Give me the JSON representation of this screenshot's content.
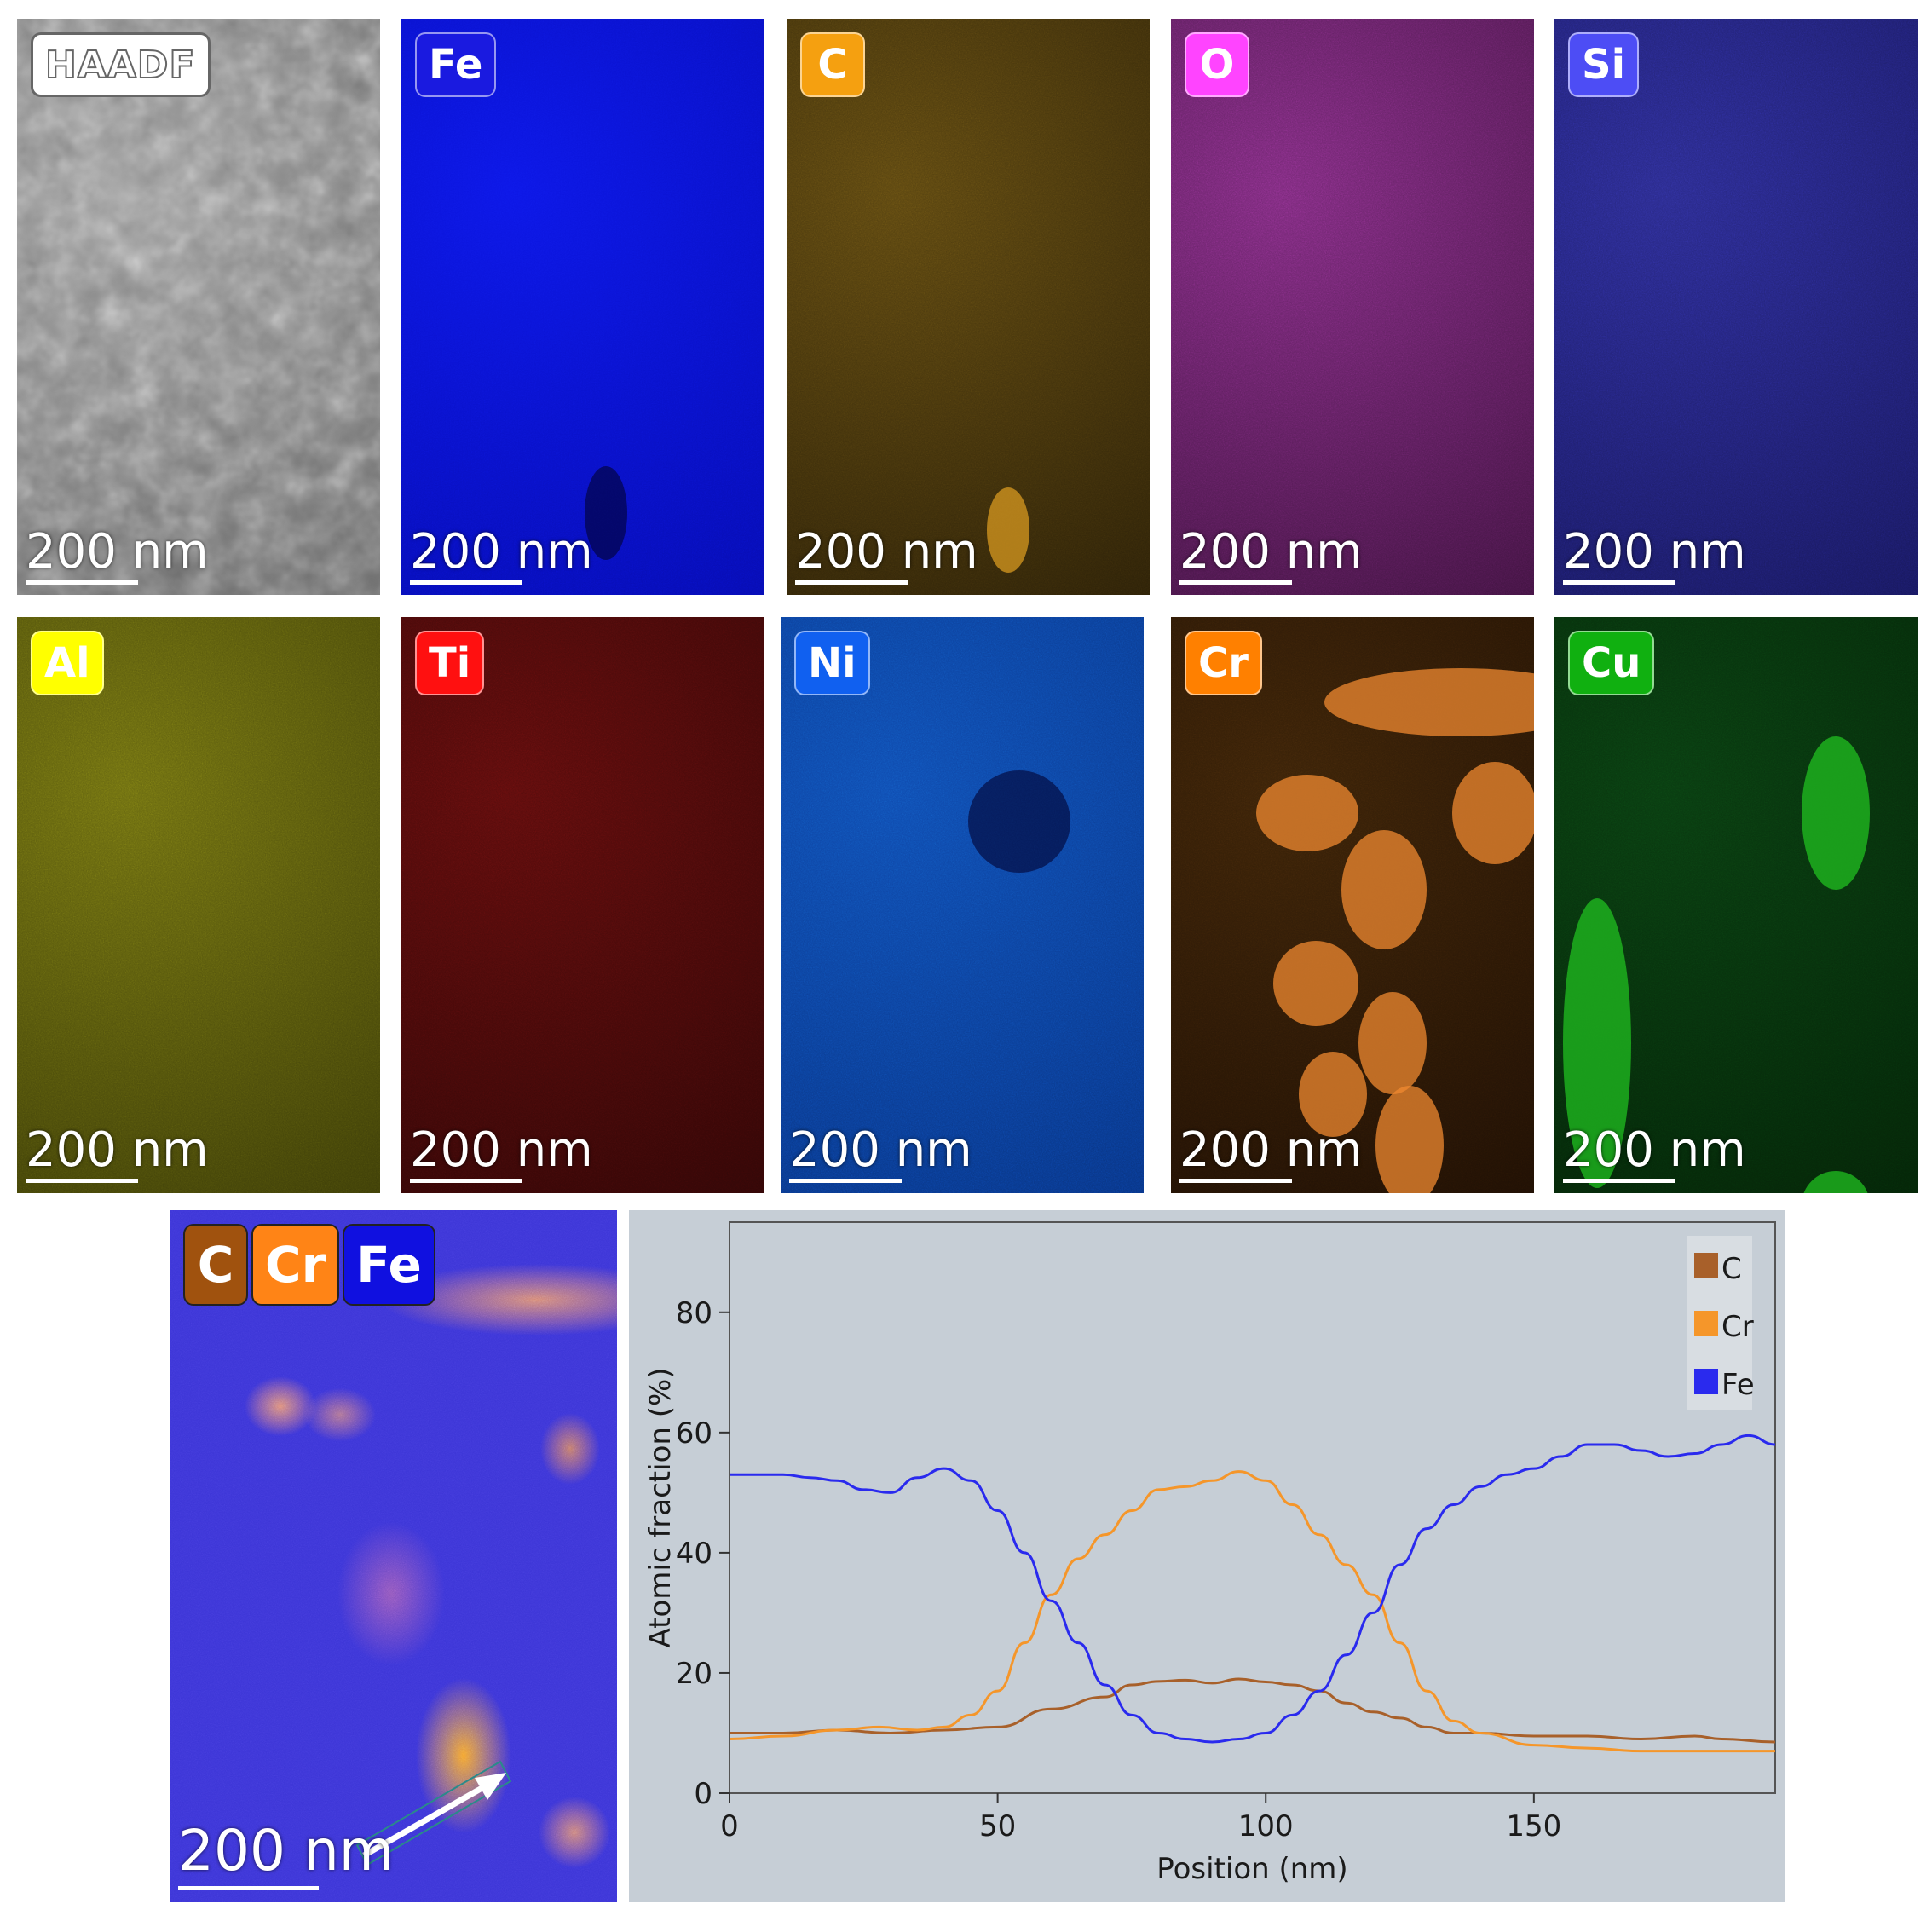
{
  "scale_bar_label": "200 nm",
  "maps": [
    {
      "label": "HAADF",
      "bg_color": "#9a9a9a",
      "badge_color": "#ffffff",
      "texture": "gray"
    },
    {
      "label": "Fe",
      "bg_color": "#0c16e6",
      "badge_color": "#1a1ae0",
      "texture": "blue"
    },
    {
      "label": "C",
      "bg_color": "#5a4510",
      "badge_color": "#f5a010",
      "texture": "amber"
    },
    {
      "label": "O",
      "bg_color": "#7a2a7a",
      "badge_color": "#ff44ff",
      "texture": "magenta"
    },
    {
      "label": "Si",
      "bg_color": "#2a2a8a",
      "badge_color": "#4d4df5",
      "texture": "violet"
    },
    {
      "label": "Al",
      "bg_color": "#6a6a10",
      "badge_color": "#ffff00",
      "texture": "yellow"
    },
    {
      "label": "Ti",
      "bg_color": "#5a0c0c",
      "badge_color": "#ff1010",
      "texture": "red"
    },
    {
      "label": "Ni",
      "bg_color": "#0f4bb0",
      "badge_color": "#1060f0",
      "texture": "cobalt"
    },
    {
      "label": "Cr",
      "bg_color": "#3a2208",
      "badge_color": "#ff8000",
      "texture": "orange"
    },
    {
      "label": "Cu",
      "bg_color": "#093a10",
      "badge_color": "#10b010",
      "texture": "green"
    }
  ],
  "overlay": {
    "badges": [
      {
        "label": "C",
        "color": "#a0520e"
      },
      {
        "label": "Cr",
        "color": "#ff8416"
      },
      {
        "label": "Fe",
        "color": "#1010e0"
      }
    ],
    "scale_bar_label": "200 nm"
  },
  "chart_data": {
    "type": "line",
    "xlabel": "Position (nm)",
    "ylabel": "Atomic fraction (%)",
    "xlim": [
      0,
      195
    ],
    "ylim": [
      0,
      95
    ],
    "xticks": [
      0,
      50,
      100,
      150
    ],
    "yticks": [
      0,
      20,
      40,
      60,
      80
    ],
    "legend_position": "top-right",
    "series": [
      {
        "name": "C",
        "color": "#a8602a",
        "x": [
          0,
          10,
          20,
          30,
          40,
          50,
          60,
          70,
          75,
          80,
          85,
          90,
          95,
          100,
          105,
          110,
          115,
          120,
          125,
          130,
          135,
          140,
          150,
          160,
          170,
          180,
          185,
          195
        ],
        "y": [
          10,
          10,
          10.5,
          10,
          10.5,
          11,
          14,
          16,
          18,
          18.6,
          18.8,
          18.3,
          19,
          18.5,
          18,
          17,
          15,
          13.5,
          12.5,
          11,
          10,
          10,
          9.5,
          9.5,
          9,
          9.5,
          9,
          8.5
        ]
      },
      {
        "name": "Cr",
        "color": "#f5962a",
        "x": [
          0,
          10,
          20,
          28,
          35,
          40,
          45,
          50,
          55,
          60,
          65,
          70,
          75,
          80,
          85,
          90,
          95,
          100,
          105,
          110,
          115,
          120,
          125,
          130,
          135,
          140,
          150,
          160,
          170,
          180,
          195
        ],
        "y": [
          9,
          9.5,
          10.5,
          11,
          10.5,
          11,
          13,
          17,
          25,
          33,
          39,
          43,
          47,
          50.5,
          51,
          52,
          53.5,
          52,
          48,
          43,
          38,
          33,
          25,
          17,
          12,
          10,
          8,
          7.5,
          7,
          7,
          7
        ]
      },
      {
        "name": "Fe",
        "color": "#2a2aee",
        "x": [
          0,
          5,
          10,
          15,
          20,
          25,
          30,
          35,
          40,
          45,
          50,
          55,
          60,
          65,
          70,
          75,
          80,
          85,
          90,
          95,
          100,
          105,
          110,
          115,
          120,
          125,
          130,
          135,
          140,
          145,
          150,
          155,
          160,
          165,
          170,
          175,
          180,
          185,
          190,
          195
        ],
        "y": [
          53,
          53,
          53,
          52.5,
          52,
          50.5,
          50,
          52.5,
          54,
          52,
          47,
          40,
          32,
          25,
          18,
          13,
          10,
          9,
          8.5,
          9,
          10,
          13,
          17,
          23,
          30,
          38,
          44,
          48,
          51,
          53,
          54,
          56,
          58,
          58,
          57,
          56,
          56.5,
          58,
          59.5,
          58
        ]
      }
    ]
  }
}
